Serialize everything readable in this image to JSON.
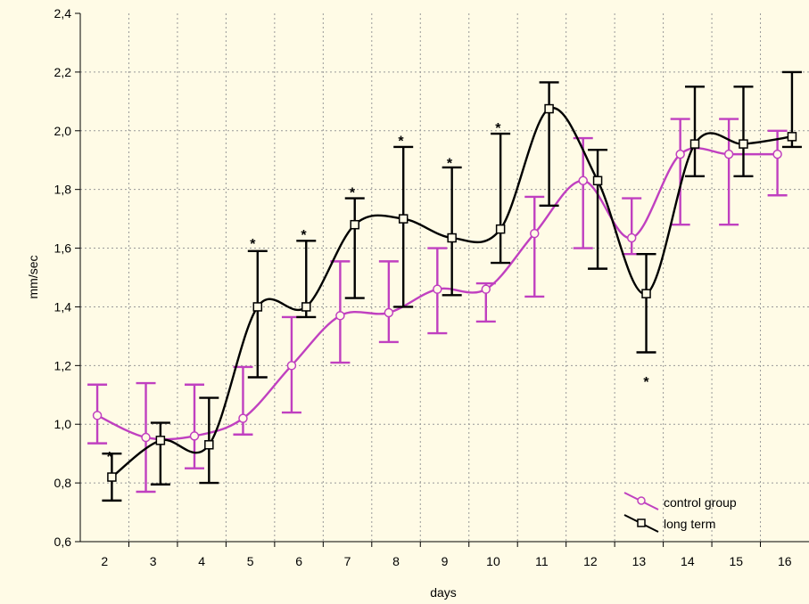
{
  "chart_data": {
    "type": "line",
    "title": "",
    "xlabel": "days",
    "ylabel": "mm/sec",
    "x_ticks": [
      "2",
      "3",
      "4",
      "5",
      "6",
      "7",
      "8",
      "9",
      "10",
      "11",
      "12",
      "13",
      "14",
      "15",
      "16"
    ],
    "y_ticks": [
      "0,6",
      "0,8",
      "1,0",
      "1,2",
      "1,4",
      "1,6",
      "1,8",
      "2,0",
      "2,2",
      "2,4"
    ],
    "ylim": [
      0.6,
      2.4
    ],
    "xlim": [
      1.5,
      16.5
    ],
    "grid": true,
    "legend_position": "bottom-right",
    "series": [
      {
        "name": "control group",
        "color": "#c040c0",
        "marker": "circle",
        "x": [
          1.85,
          2.85,
          3.85,
          4.85,
          5.85,
          6.85,
          7.85,
          8.85,
          9.85,
          10.85,
          11.85,
          12.85,
          13.85,
          14.85,
          15.85
        ],
        "y": [
          1.03,
          0.955,
          0.96,
          1.02,
          1.2,
          1.37,
          1.38,
          1.46,
          1.46,
          1.65,
          1.83,
          1.635,
          1.92,
          1.92,
          1.92
        ],
        "y_upper": [
          1.135,
          1.14,
          1.135,
          1.195,
          1.365,
          1.555,
          1.555,
          1.6,
          1.48,
          1.775,
          1.975,
          1.77,
          2.04,
          2.04,
          2.0
        ],
        "y_lower": [
          0.935,
          0.77,
          0.85,
          0.965,
          1.04,
          1.21,
          1.28,
          1.31,
          1.35,
          1.435,
          1.6,
          1.58,
          1.68,
          1.68,
          1.78
        ]
      },
      {
        "name": "long term",
        "color": "#000000",
        "marker": "square",
        "x": [
          2.15,
          3.15,
          4.15,
          5.15,
          6.15,
          7.15,
          8.15,
          9.15,
          10.15,
          11.15,
          12.15,
          13.15,
          14.15,
          15.15,
          16.15
        ],
        "y": [
          0.82,
          0.945,
          0.93,
          1.4,
          1.4,
          1.68,
          1.7,
          1.635,
          1.665,
          2.075,
          1.83,
          1.445,
          1.955,
          1.955,
          1.98
        ],
        "y_upper": [
          0.9,
          1.005,
          1.09,
          1.59,
          1.625,
          1.77,
          1.945,
          1.875,
          1.99,
          2.165,
          1.935,
          1.58,
          2.15,
          2.15,
          2.2
        ],
        "y_lower": [
          0.74,
          0.795,
          0.8,
          1.16,
          1.365,
          1.43,
          1.4,
          1.44,
          1.55,
          1.745,
          1.53,
          1.245,
          1.845,
          1.845,
          1.945
        ]
      }
    ],
    "annotations": [
      {
        "text": "*",
        "x": 2.1,
        "y": 0.91
      },
      {
        "text": "*",
        "x": 5.05,
        "y": 1.635
      },
      {
        "text": "*",
        "x": 6.1,
        "y": 1.665
      },
      {
        "text": "*",
        "x": 7.1,
        "y": 1.81
      },
      {
        "text": "*",
        "x": 8.1,
        "y": 1.985
      },
      {
        "text": "*",
        "x": 9.1,
        "y": 1.91
      },
      {
        "text": "*",
        "x": 10.1,
        "y": 2.03
      },
      {
        "text": "*",
        "x": 13.15,
        "y": 1.165
      }
    ]
  }
}
